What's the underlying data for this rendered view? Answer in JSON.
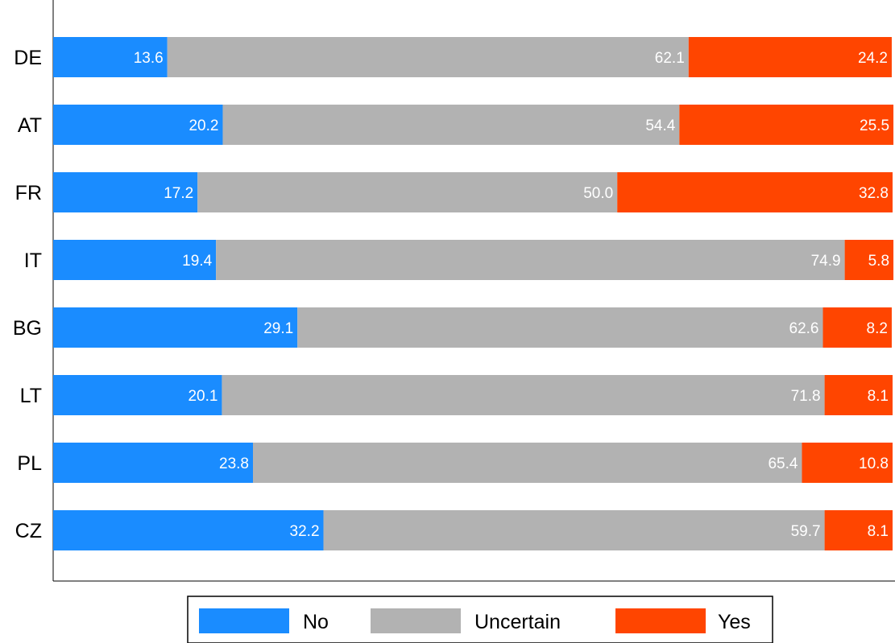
{
  "chart_data": {
    "type": "bar",
    "orientation": "horizontal",
    "stacked": true,
    "categories": [
      "DE",
      "AT",
      "FR",
      "IT",
      "BG",
      "LT",
      "PL",
      "CZ"
    ],
    "series": [
      {
        "name": "No",
        "color": "#1a8cff",
        "values": [
          13.6,
          20.2,
          17.2,
          19.4,
          29.1,
          20.1,
          23.8,
          32.2
        ]
      },
      {
        "name": "Uncertain",
        "color": "#b2b2b2",
        "values": [
          62.1,
          54.4,
          50.0,
          74.9,
          62.6,
          71.8,
          65.4,
          59.7
        ]
      },
      {
        "name": "Yes",
        "color": "#ff4500",
        "values": [
          24.2,
          25.5,
          32.8,
          5.8,
          8.2,
          8.1,
          10.8,
          8.1
        ]
      }
    ],
    "value_labels": [
      [
        "13.6",
        "62.1",
        "24.2"
      ],
      [
        "20.2",
        "54.4",
        "25.5"
      ],
      [
        "17.2",
        "50.0",
        "32.8"
      ],
      [
        "19.4",
        "74.9",
        "5.8"
      ],
      [
        "29.1",
        "62.6",
        "8.2"
      ],
      [
        "20.1",
        "71.8",
        "8.1"
      ],
      [
        "23.8",
        "65.4",
        "10.8"
      ],
      [
        "32.2",
        "59.7",
        "8.1"
      ]
    ],
    "xlim": [
      0,
      100
    ],
    "grid": false,
    "legend_position": "bottom"
  }
}
